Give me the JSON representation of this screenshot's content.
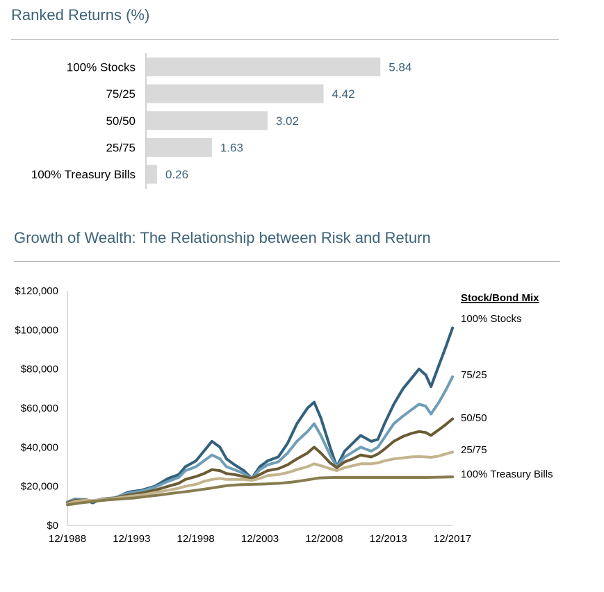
{
  "chart_data": [
    {
      "type": "bar",
      "orientation": "horizontal",
      "title": "Ranked Returns (%)",
      "categories": [
        "100% Stocks",
        "75/25",
        "50/50",
        "25/75",
        "100% Treasury Bills"
      ],
      "values": [
        5.84,
        4.42,
        3.02,
        1.63,
        0.26
      ],
      "value_labels": [
        "5.84",
        "4.42",
        "3.02",
        "1.63",
        "0.26"
      ],
      "xlim": [
        0,
        6.6
      ],
      "grid": false,
      "colors": {
        "bar": "#d9d9d9",
        "label": "#3c6378"
      }
    },
    {
      "type": "line",
      "title": "Growth of Wealth: The Relationship between Risk and Return",
      "xlabel": "",
      "ylabel": "",
      "x_ticks": [
        "12/1988",
        "12/1993",
        "12/1998",
        "12/2003",
        "12/2008",
        "12/2013",
        "12/2017"
      ],
      "y_ticks": [
        "$120,000",
        "$100,000",
        "$80,000",
        "$60,000",
        "$40,000",
        "$20,000",
        "$0"
      ],
      "ylim": [
        0,
        120000
      ],
      "xlim": [
        1988.917,
        2017.917
      ],
      "grid": false,
      "legend_title": "Stock/Bond Mix",
      "legend_position": "right",
      "series": [
        {
          "name": "100% Stocks",
          "color": "#33617c",
          "points": [
            [
              1988.92,
              12000
            ],
            [
              1989.5,
              13500
            ],
            [
              1990.3,
              13000
            ],
            [
              1990.8,
              11500
            ],
            [
              1991.5,
              13500
            ],
            [
              1992.5,
              14000
            ],
            [
              1993.5,
              17000
            ],
            [
              1994.5,
              18000
            ],
            [
              1995.5,
              20000
            ],
            [
              1996.5,
              24000
            ],
            [
              1997.3,
              26000
            ],
            [
              1997.8,
              30000
            ],
            [
              1998.6,
              33000
            ],
            [
              1999.2,
              38000
            ],
            [
              1999.8,
              43000
            ],
            [
              2000.4,
              40000
            ],
            [
              2000.9,
              34000
            ],
            [
              2001.5,
              31000
            ],
            [
              2002.2,
              28000
            ],
            [
              2002.8,
              24000
            ],
            [
              2003.4,
              30000
            ],
            [
              2004.0,
              33000
            ],
            [
              2004.8,
              35000
            ],
            [
              2005.5,
              42000
            ],
            [
              2006.2,
              52000
            ],
            [
              2007.0,
              60000
            ],
            [
              2007.5,
              63000
            ],
            [
              2008.0,
              55000
            ],
            [
              2008.7,
              40000
            ],
            [
              2009.2,
              30000
            ],
            [
              2009.8,
              38000
            ],
            [
              2010.4,
              42000
            ],
            [
              2011.0,
              46000
            ],
            [
              2011.8,
              43000
            ],
            [
              2012.3,
              44000
            ],
            [
              2012.8,
              52000
            ],
            [
              2013.5,
              62000
            ],
            [
              2014.2,
              70000
            ],
            [
              2014.8,
              75000
            ],
            [
              2015.4,
              80000
            ],
            [
              2015.9,
              77000
            ],
            [
              2016.3,
              71000
            ],
            [
              2016.9,
              82000
            ],
            [
              2017.4,
              91000
            ],
            [
              2017.92,
              101000
            ]
          ]
        },
        {
          "name": "75/25",
          "color": "#6f9eb8",
          "points": [
            [
              1988.92,
              12000
            ],
            [
              1989.5,
              13300
            ],
            [
              1990.3,
              13200
            ],
            [
              1990.8,
              12200
            ],
            [
              1991.5,
              13500
            ],
            [
              1992.5,
              14200
            ],
            [
              1993.5,
              16500
            ],
            [
              1994.5,
              17500
            ],
            [
              1995.5,
              19500
            ],
            [
              1996.5,
              22500
            ],
            [
              1997.3,
              24500
            ],
            [
              1997.8,
              28000
            ],
            [
              1998.6,
              30000
            ],
            [
              1999.2,
              33000
            ],
            [
              1999.8,
              36000
            ],
            [
              2000.4,
              34000
            ],
            [
              2000.9,
              30000
            ],
            [
              2001.5,
              28500
            ],
            [
              2002.2,
              26500
            ],
            [
              2002.8,
              24000
            ],
            [
              2003.4,
              28500
            ],
            [
              2004.0,
              31000
            ],
            [
              2004.8,
              32500
            ],
            [
              2005.5,
              37000
            ],
            [
              2006.2,
              43000
            ],
            [
              2007.0,
              48000
            ],
            [
              2007.5,
              52000
            ],
            [
              2008.0,
              46000
            ],
            [
              2008.7,
              36000
            ],
            [
              2009.2,
              30000
            ],
            [
              2009.8,
              35000
            ],
            [
              2010.4,
              37500
            ],
            [
              2011.0,
              40000
            ],
            [
              2011.8,
              38000
            ],
            [
              2012.3,
              40000
            ],
            [
              2012.8,
              45000
            ],
            [
              2013.5,
              52000
            ],
            [
              2014.2,
              56000
            ],
            [
              2014.8,
              59000
            ],
            [
              2015.4,
              62000
            ],
            [
              2015.9,
              61000
            ],
            [
              2016.3,
              57000
            ],
            [
              2016.9,
              63000
            ],
            [
              2017.4,
              69000
            ],
            [
              2017.92,
              76000
            ]
          ]
        },
        {
          "name": "50/50",
          "color": "#6b5b34",
          "points": [
            [
              1988.92,
              11500
            ],
            [
              1989.5,
              12800
            ],
            [
              1990.3,
              13000
            ],
            [
              1990.8,
              12500
            ],
            [
              1991.5,
              13300
            ],
            [
              1992.5,
              14000
            ],
            [
              1993.5,
              15500
            ],
            [
              1994.5,
              16500
            ],
            [
              1995.5,
              18000
            ],
            [
              1996.5,
              20000
            ],
            [
              1997.3,
              21500
            ],
            [
              1997.8,
              23500
            ],
            [
              1998.6,
              25000
            ],
            [
              1999.2,
              26500
            ],
            [
              1999.8,
              28500
            ],
            [
              2000.4,
              28000
            ],
            [
              2000.9,
              26500
            ],
            [
              2001.5,
              26000
            ],
            [
              2002.2,
              25000
            ],
            [
              2002.8,
              24000
            ],
            [
              2003.4,
              26000
            ],
            [
              2004.0,
              28000
            ],
            [
              2004.8,
              29000
            ],
            [
              2005.5,
              31000
            ],
            [
              2006.2,
              34000
            ],
            [
              2007.0,
              37000
            ],
            [
              2007.5,
              40000
            ],
            [
              2008.0,
              37000
            ],
            [
              2008.7,
              32000
            ],
            [
              2009.2,
              29500
            ],
            [
              2009.8,
              32500
            ],
            [
              2010.4,
              34000
            ],
            [
              2011.0,
              36000
            ],
            [
              2011.8,
              35000
            ],
            [
              2012.3,
              36500
            ],
            [
              2012.8,
              39000
            ],
            [
              2013.5,
              43000
            ],
            [
              2014.2,
              45500
            ],
            [
              2014.8,
              47000
            ],
            [
              2015.4,
              48000
            ],
            [
              2015.9,
              47500
            ],
            [
              2016.3,
              46000
            ],
            [
              2016.9,
              49000
            ],
            [
              2017.4,
              51500
            ],
            [
              2017.92,
              54500
            ]
          ]
        },
        {
          "name": "25/75",
          "color": "#c4b48e",
          "points": [
            [
              1988.92,
              11000
            ],
            [
              1989.5,
              12300
            ],
            [
              1990.3,
              12800
            ],
            [
              1990.8,
              12700
            ],
            [
              1991.5,
              13200
            ],
            [
              1992.5,
              13800
            ],
            [
              1993.5,
              14800
            ],
            [
              1994.5,
              15500
            ],
            [
              1995.5,
              16800
            ],
            [
              1996.5,
              18000
            ],
            [
              1997.3,
              19000
            ],
            [
              1997.8,
              20000
            ],
            [
              1998.6,
              21000
            ],
            [
              1999.2,
              22500
            ],
            [
              1999.8,
              23500
            ],
            [
              2000.4,
              24000
            ],
            [
              2000.9,
              23500
            ],
            [
              2001.5,
              23500
            ],
            [
              2002.2,
              23500
            ],
            [
              2002.8,
              23000
            ],
            [
              2003.4,
              24000
            ],
            [
              2004.0,
              25500
            ],
            [
              2004.8,
              26000
            ],
            [
              2005.5,
              27000
            ],
            [
              2006.2,
              28500
            ],
            [
              2007.0,
              30000
            ],
            [
              2007.5,
              31500
            ],
            [
              2008.0,
              30500
            ],
            [
              2008.7,
              29000
            ],
            [
              2009.2,
              28000
            ],
            [
              2009.8,
              29500
            ],
            [
              2010.4,
              30500
            ],
            [
              2011.0,
              31500
            ],
            [
              2011.8,
              31500
            ],
            [
              2012.3,
              32000
            ],
            [
              2012.8,
              33000
            ],
            [
              2013.5,
              34000
            ],
            [
              2014.2,
              34500
            ],
            [
              2014.8,
              35000
            ],
            [
              2015.4,
              35200
            ],
            [
              2015.9,
              35000
            ],
            [
              2016.3,
              34800
            ],
            [
              2016.9,
              35500
            ],
            [
              2017.4,
              36500
            ],
            [
              2017.92,
              37500
            ]
          ]
        },
        {
          "name": "100% Treasury Bills",
          "color": "#877c4f",
          "points": [
            [
              1988.92,
              10500
            ],
            [
              1989.9,
              11500
            ],
            [
              1990.9,
              12300
            ],
            [
              1991.9,
              13000
            ],
            [
              1992.9,
              13500
            ],
            [
              1993.9,
              14000
            ],
            [
              1994.9,
              14800
            ],
            [
              1995.9,
              15600
            ],
            [
              1996.9,
              16500
            ],
            [
              1997.9,
              17300
            ],
            [
              1998.9,
              18200
            ],
            [
              1999.9,
              19200
            ],
            [
              2000.9,
              20300
            ],
            [
              2001.9,
              20800
            ],
            [
              2002.9,
              21000
            ],
            [
              2003.9,
              21200
            ],
            [
              2004.9,
              21500
            ],
            [
              2005.9,
              22200
            ],
            [
              2006.9,
              23200
            ],
            [
              2007.9,
              24300
            ],
            [
              2008.9,
              24500
            ],
            [
              2009.9,
              24500
            ],
            [
              2012.9,
              24500
            ],
            [
              2015.9,
              24500
            ],
            [
              2017.92,
              24800
            ]
          ]
        }
      ]
    }
  ]
}
